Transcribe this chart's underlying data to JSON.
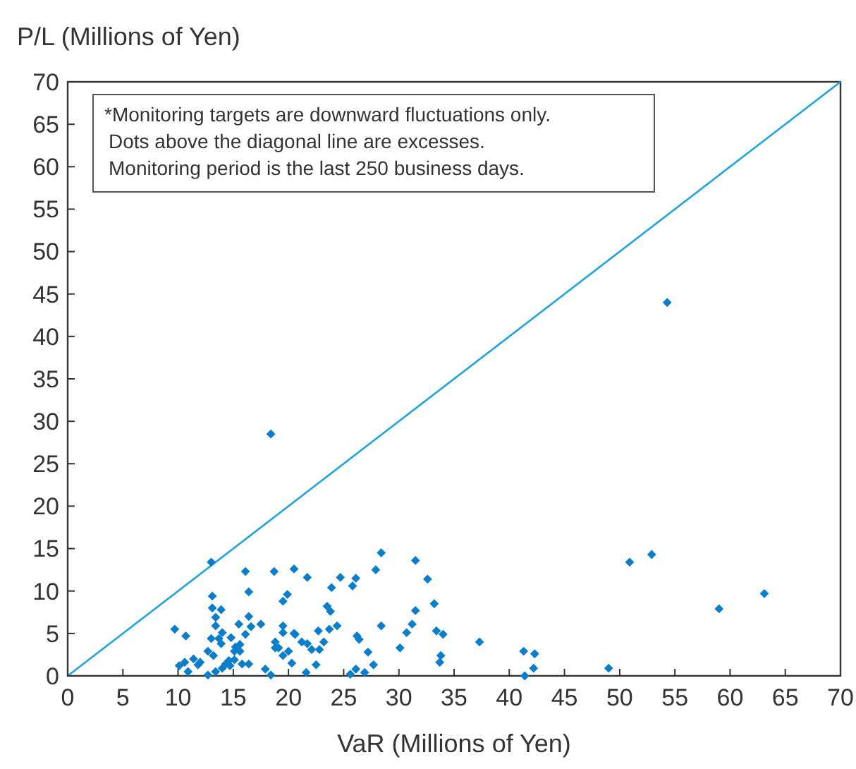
{
  "chart_data": {
    "type": "scatter",
    "xlabel": "VaR (Millions of Yen)",
    "ylabel": "P/L (Millions of Yen)",
    "xlim": [
      0,
      70
    ],
    "ylim": [
      0,
      70
    ],
    "xticks": [
      0,
      5,
      10,
      15,
      20,
      25,
      30,
      35,
      40,
      45,
      50,
      55,
      60,
      65,
      70
    ],
    "yticks": [
      0,
      5,
      10,
      15,
      20,
      25,
      30,
      35,
      40,
      45,
      50,
      55,
      60,
      65,
      70
    ],
    "grid": false,
    "annotations": [
      "*Monitoring targets are downward fluctuations only.",
      "Dots above the diagonal line are excesses.",
      "Monitoring period is the last 250 business days."
    ],
    "series": [
      {
        "type": "line",
        "color": "#1aa3e0",
        "marker": "none",
        "x": [
          0,
          70
        ],
        "values": [
          0,
          70
        ]
      },
      {
        "color": "#0a7ecb",
        "marker": "diamond",
        "x": [
          13.0,
          16.1,
          18.7,
          20.5,
          16.4,
          13.1,
          13.1,
          13.9,
          13.4,
          19.9,
          19.5,
          16.4,
          15.5,
          17.5,
          16.6,
          13.4,
          9.7,
          10.7,
          14.0,
          13.0,
          13.7,
          13.9,
          14.8,
          16.1,
          15.6,
          15.2,
          15.1,
          15.6,
          12.7,
          13.2,
          19.5,
          19.5,
          20.5,
          18.8,
          18.8,
          19.1,
          20.0,
          19.5,
          20.3,
          11.4,
          12.0,
          11.8,
          10.6,
          10.1,
          10.9,
          14.6,
          14.3,
          15.1,
          14.0,
          13.4,
          12.7,
          15.8,
          16.4,
          17.9,
          18.4,
          14.7,
          21.7,
          24.7,
          26.1,
          28.4,
          27.9,
          31.5,
          32.6,
          23.9,
          25.8,
          23.5,
          23.8,
          33.2,
          31.5,
          20.6,
          22.7,
          23.7,
          24.4,
          28.4,
          31.2,
          30.7,
          33.4,
          34.0,
          26.2,
          26.4,
          21.2,
          21.7,
          23.2,
          22.1,
          22.8,
          27.2,
          30.1,
          33.8,
          33.7,
          37.3,
          22.5,
          27.7,
          21.6,
          25.6,
          26.1,
          26.9,
          41.3,
          42.3,
          42.2,
          41.4,
          49.0,
          50.9,
          52.9,
          59.0,
          63.1,
          54.3,
          18.4
        ],
        "values": [
          13.4,
          12.3,
          12.3,
          12.6,
          9.9,
          9.4,
          8.0,
          7.8,
          6.9,
          9.6,
          8.8,
          7.0,
          6.1,
          6.1,
          5.8,
          5.9,
          5.5,
          4.7,
          5.1,
          4.4,
          4.4,
          3.8,
          4.5,
          4.9,
          3.7,
          3.4,
          2.9,
          2.9,
          2.9,
          2.4,
          5.9,
          5.1,
          5.0,
          4.0,
          3.3,
          3.3,
          2.9,
          2.4,
          1.5,
          2.0,
          1.6,
          1.3,
          1.6,
          1.2,
          0.5,
          1.8,
          1.4,
          1.9,
          0.9,
          0.5,
          0.1,
          1.4,
          1.4,
          0.8,
          0.1,
          1.2,
          11.6,
          11.6,
          11.5,
          14.5,
          12.5,
          13.6,
          11.4,
          10.4,
          10.6,
          8.2,
          7.6,
          8.5,
          7.7,
          4.9,
          5.3,
          5.5,
          5.9,
          5.9,
          6.1,
          5.1,
          5.3,
          4.9,
          4.7,
          4.3,
          4.0,
          3.8,
          4.0,
          3.1,
          3.1,
          2.8,
          3.3,
          2.4,
          1.6,
          4.0,
          1.3,
          1.3,
          0.4,
          0.2,
          0.8,
          0.4,
          2.9,
          2.6,
          0.9,
          0.0,
          0.9,
          13.4,
          14.3,
          7.9,
          9.7,
          44.0,
          28.5
        ]
      }
    ]
  }
}
